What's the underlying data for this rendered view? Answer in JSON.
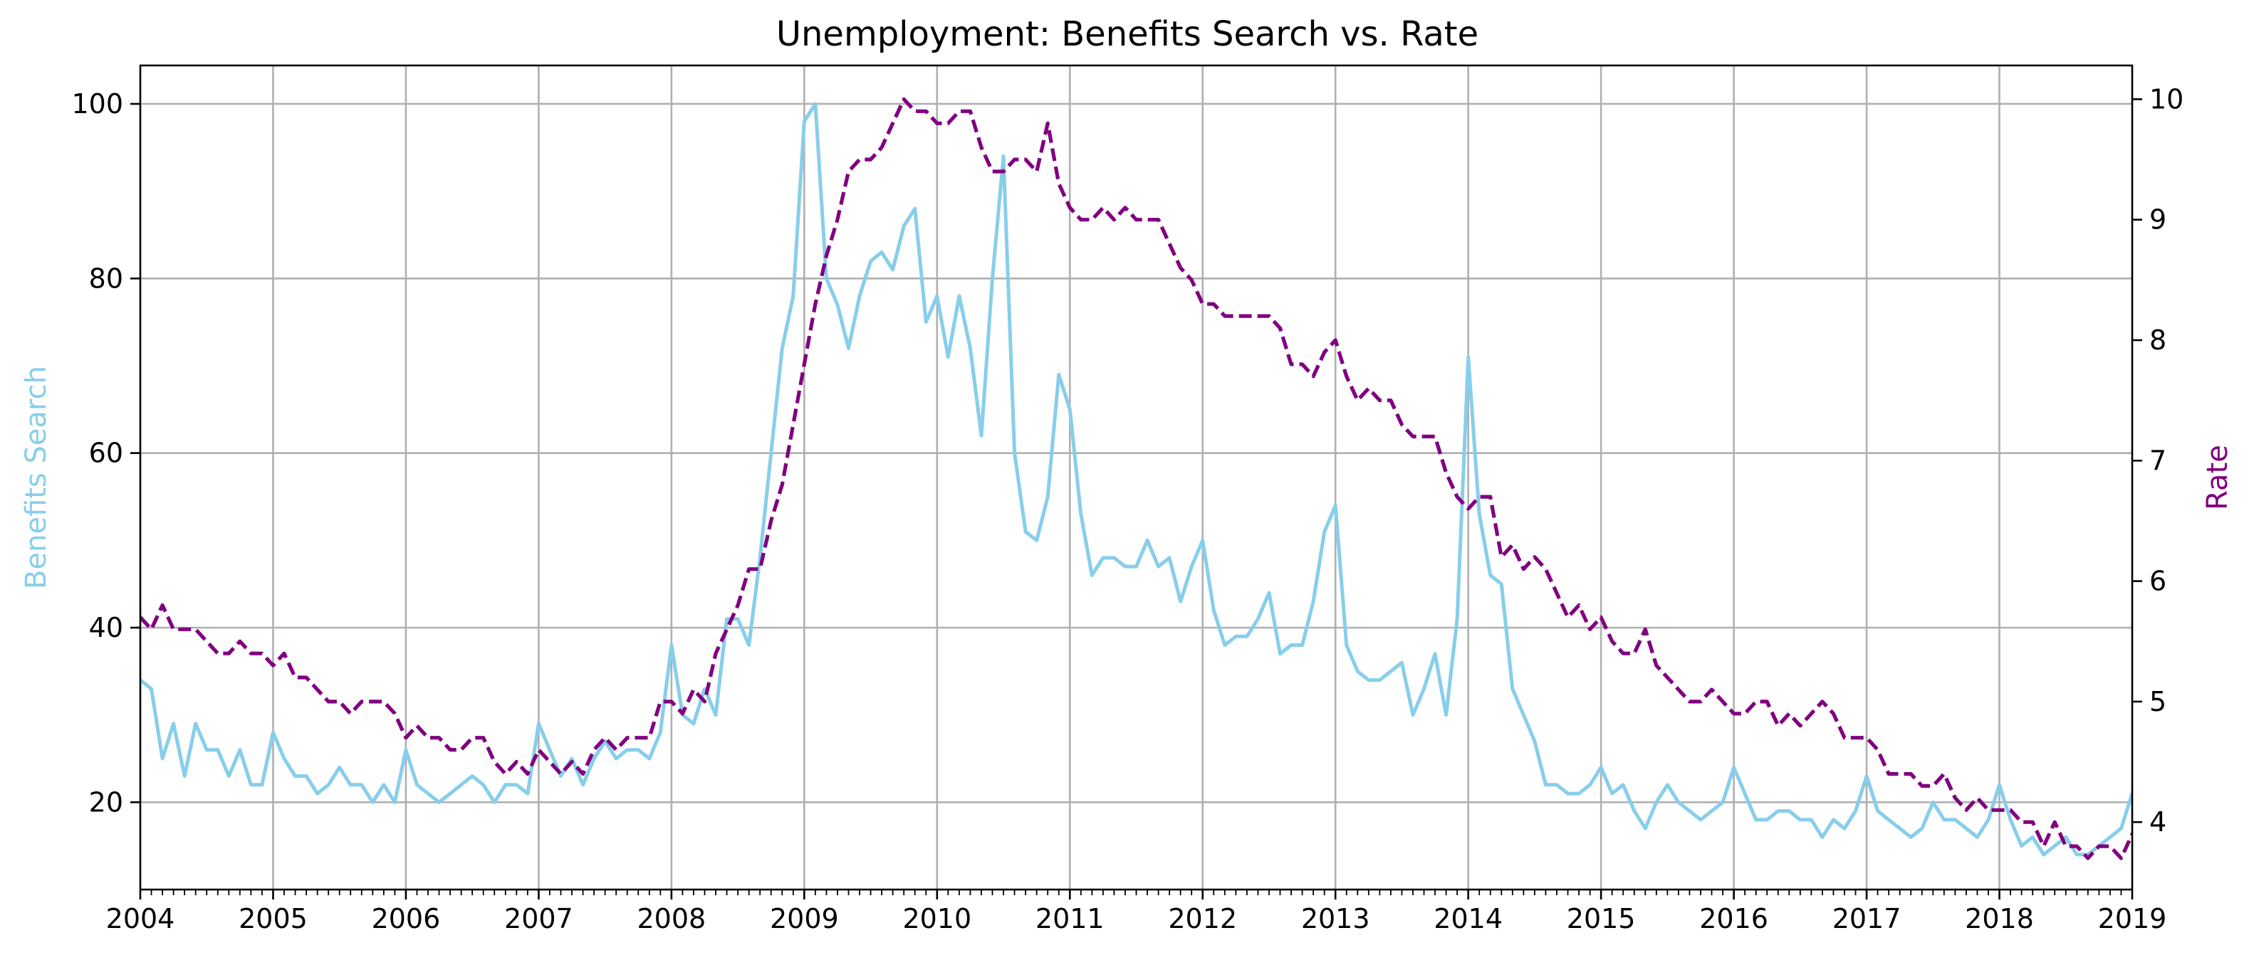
{
  "chart_data": {
    "type": "line",
    "title": "Unemployment: Benefits Search vs. Rate",
    "x_axis": {
      "range": [
        "2004-01",
        "2019-01"
      ],
      "tick_labels": [
        "2004",
        "2005",
        "2006",
        "2007",
        "2008",
        "2009",
        "2010",
        "2011",
        "2012",
        "2013",
        "2014",
        "2015",
        "2016",
        "2017",
        "2018",
        "2019"
      ]
    },
    "y_axis_left": {
      "label": "Benefits Search",
      "range": [
        10,
        104.4
      ],
      "ticks": [
        20,
        40,
        60,
        80,
        100
      ],
      "color": "#87ceeb"
    },
    "y_axis_right": {
      "label": "Rate",
      "range": [
        3.44,
        10.28
      ],
      "ticks": [
        4,
        5,
        6,
        7,
        8,
        9,
        10
      ],
      "color": "#800080"
    },
    "grid": true,
    "series": [
      {
        "axis": "left",
        "color": "#87ceeb",
        "style": "solid",
        "start": "2004-01",
        "frequency": "monthly",
        "values": [
          34,
          33,
          25,
          29,
          23,
          29,
          26,
          26,
          23,
          26,
          22,
          22,
          28,
          25,
          23,
          23,
          21,
          22,
          24,
          22,
          22,
          20,
          22,
          20,
          26,
          22,
          21,
          20,
          21,
          22,
          23,
          22,
          20,
          22,
          22,
          21,
          29,
          26,
          23,
          25,
          22,
          25,
          27,
          25,
          26,
          26,
          25,
          28,
          38,
          30,
          29,
          33,
          30,
          41,
          41,
          38,
          48,
          60,
          72,
          78,
          98,
          100,
          80,
          77,
          72,
          78,
          82,
          83,
          81,
          86,
          88,
          75,
          78,
          71,
          78,
          72,
          62,
          80,
          94,
          60,
          51,
          50,
          55,
          69,
          65,
          53,
          46,
          48,
          48,
          47,
          47,
          50,
          47,
          48,
          43,
          47,
          50,
          42,
          38,
          39,
          39,
          41,
          44,
          37,
          38,
          38,
          43,
          51,
          54,
          38,
          35,
          34,
          34,
          35,
          36,
          30,
          33,
          37,
          30,
          41,
          71,
          53,
          46,
          45,
          33,
          30,
          27,
          22,
          22,
          21,
          21,
          22,
          24,
          21,
          22,
          19,
          17,
          20,
          22,
          20,
          19,
          18,
          19,
          20,
          24,
          21,
          18,
          18,
          19,
          19,
          18,
          18,
          16,
          18,
          17,
          19,
          23,
          19,
          18,
          17,
          16,
          17,
          20,
          18,
          18,
          17,
          16,
          18,
          22,
          18,
          15,
          16,
          14,
          15,
          16,
          14,
          14,
          15,
          16,
          17,
          21
        ]
      },
      {
        "axis": "right",
        "color": "#800080",
        "style": "dashed",
        "start": "2004-01",
        "frequency": "monthly",
        "values": [
          5.7,
          5.6,
          5.8,
          5.6,
          5.6,
          5.6,
          5.5,
          5.4,
          5.4,
          5.5,
          5.4,
          5.4,
          5.3,
          5.4,
          5.2,
          5.2,
          5.1,
          5.0,
          5.0,
          4.9,
          5.0,
          5.0,
          5.0,
          4.9,
          4.7,
          4.8,
          4.7,
          4.7,
          4.6,
          4.6,
          4.7,
          4.7,
          4.5,
          4.4,
          4.5,
          4.4,
          4.6,
          4.5,
          4.4,
          4.5,
          4.4,
          4.6,
          4.7,
          4.6,
          4.7,
          4.7,
          4.7,
          5.0,
          5.0,
          4.9,
          5.1,
          5.0,
          5.4,
          5.6,
          5.8,
          6.1,
          6.1,
          6.5,
          6.8,
          7.3,
          7.8,
          8.3,
          8.7,
          9.0,
          9.4,
          9.5,
          9.5,
          9.6,
          9.8,
          10.0,
          9.9,
          9.9,
          9.8,
          9.8,
          9.9,
          9.9,
          9.6,
          9.4,
          9.4,
          9.5,
          9.5,
          9.4,
          9.8,
          9.3,
          9.1,
          9.0,
          9.0,
          9.1,
          9.0,
          9.1,
          9.0,
          9.0,
          9.0,
          8.8,
          8.6,
          8.5,
          8.3,
          8.3,
          8.2,
          8.2,
          8.2,
          8.2,
          8.2,
          8.1,
          7.8,
          7.8,
          7.7,
          7.9,
          8.0,
          7.7,
          7.5,
          7.6,
          7.5,
          7.5,
          7.3,
          7.2,
          7.2,
          7.2,
          6.9,
          6.7,
          6.6,
          6.7,
          6.7,
          6.2,
          6.3,
          6.1,
          6.2,
          6.1,
          5.9,
          5.7,
          5.8,
          5.6,
          5.7,
          5.5,
          5.4,
          5.4,
          5.6,
          5.3,
          5.2,
          5.1,
          5.0,
          5.0,
          5.1,
          5.0,
          4.9,
          4.9,
          5.0,
          5.0,
          4.8,
          4.9,
          4.8,
          4.9,
          5.0,
          4.9,
          4.7,
          4.7,
          4.7,
          4.6,
          4.4,
          4.4,
          4.4,
          4.3,
          4.3,
          4.4,
          4.2,
          4.1,
          4.2,
          4.1,
          4.1,
          4.1,
          4.0,
          4.0,
          3.8,
          4.0,
          3.8,
          3.8,
          3.7,
          3.8,
          3.8,
          3.7,
          3.9,
          4.0
        ]
      }
    ]
  }
}
